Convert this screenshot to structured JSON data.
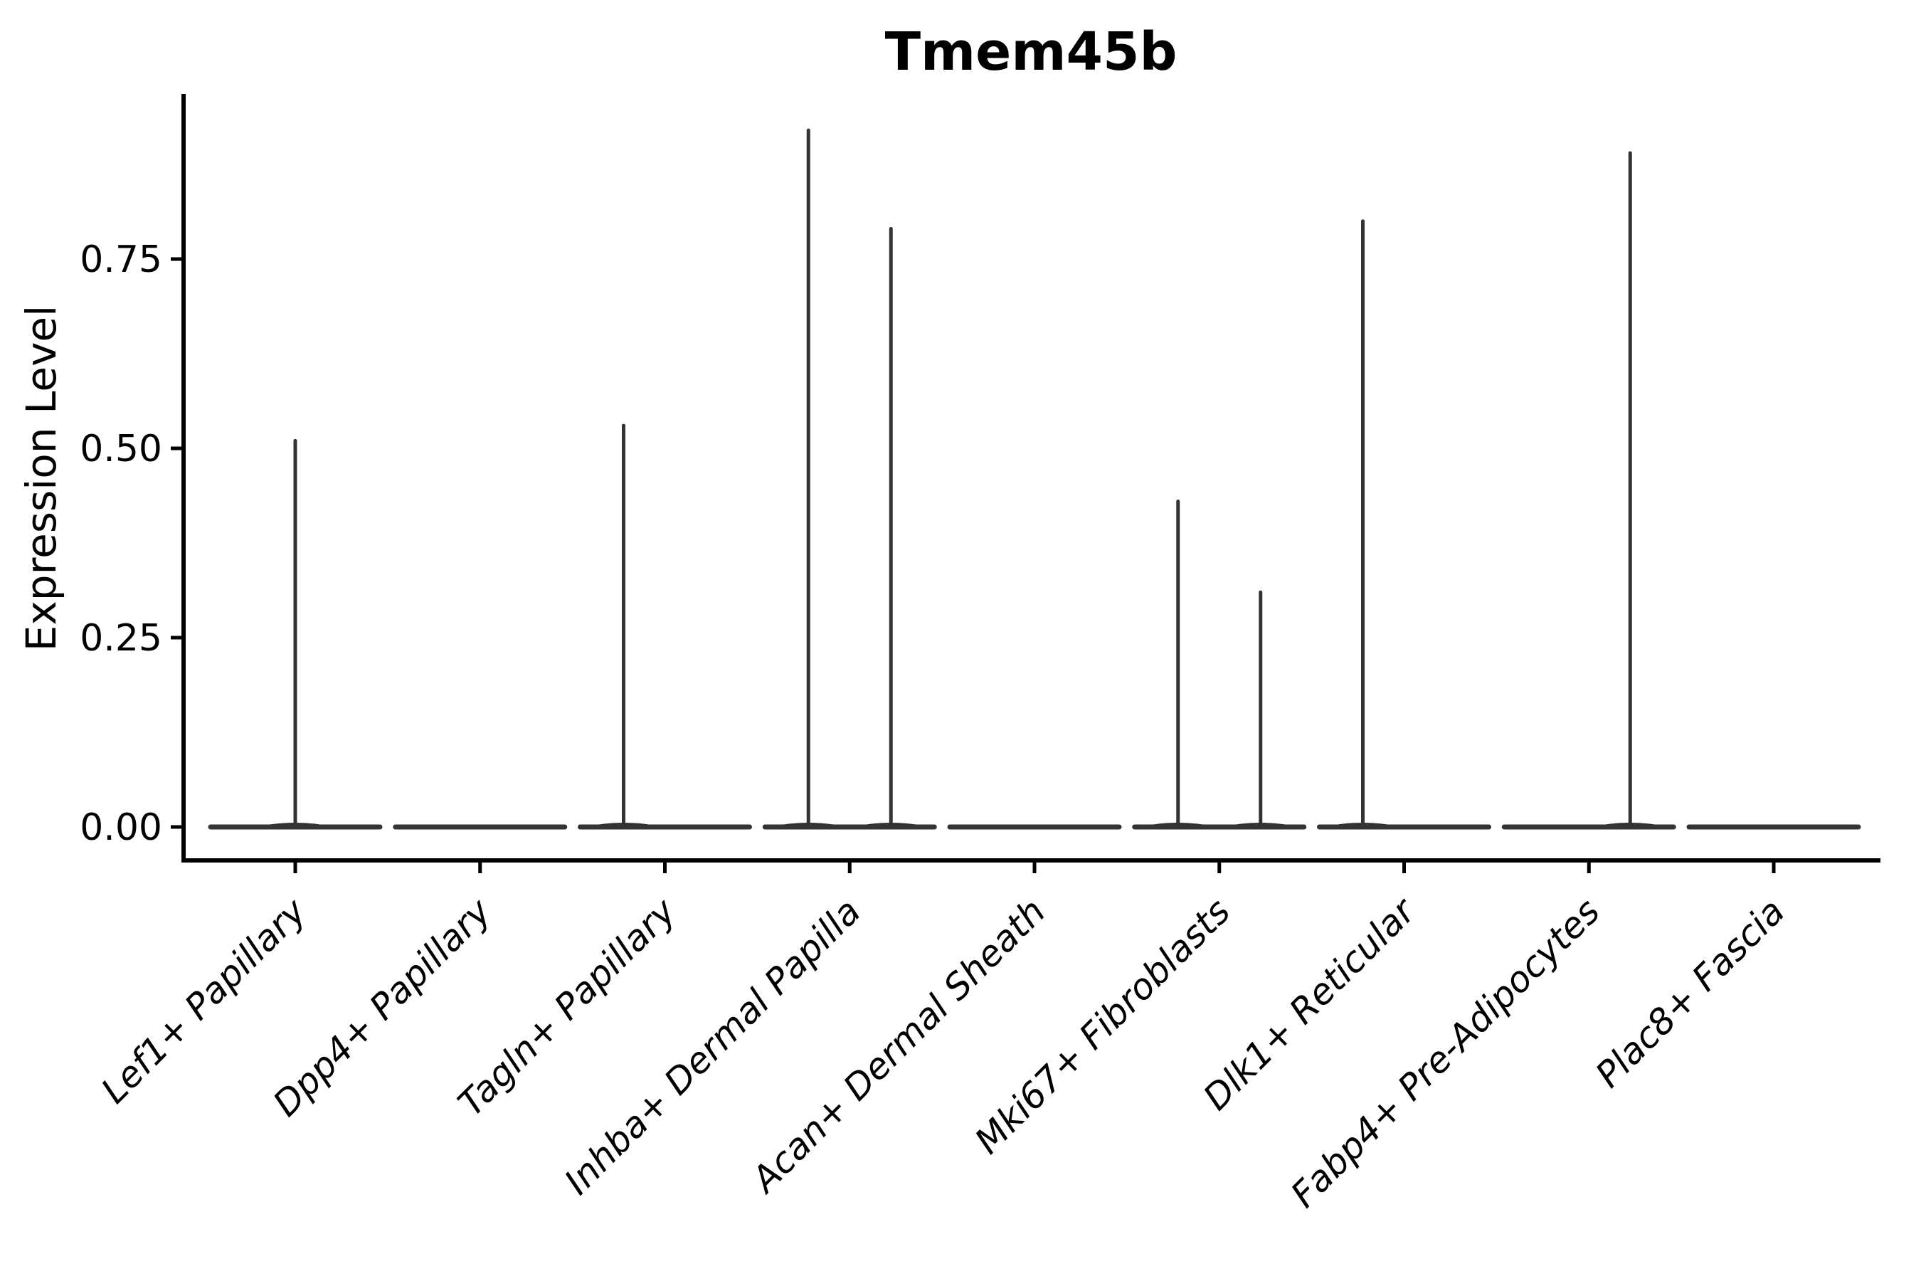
{
  "chart_data": {
    "type": "violin",
    "title": "Tmem45b",
    "xlabel": "",
    "ylabel": "Expression Level",
    "yticks": [
      0.0,
      0.25,
      0.5,
      0.75
    ],
    "ytick_labels": [
      "0.00",
      "0.25",
      "0.50",
      "0.75"
    ],
    "ylim": [
      -0.045,
      0.965
    ],
    "categories": [
      "Lef1+ Papillary",
      "Dpp4+ Papillary",
      "Tagln+ Papillary",
      "Inhba+ Dermal Papilla",
      "Acan+ Dermal Sheath",
      "Mki67+ Fibroblasts",
      "Dlk1+ Reticular",
      "Fabp4+ Pre-Adipocytes",
      "Plac8+ Fascia"
    ],
    "violins": [
      {
        "category": "Lef1+ Papillary",
        "body": "flat-at-zero",
        "spikes": [
          {
            "position": "center",
            "max": 0.51
          }
        ]
      },
      {
        "category": "Dpp4+ Papillary",
        "body": "flat-at-zero",
        "spikes": []
      },
      {
        "category": "Tagln+ Papillary",
        "body": "flat-at-zero",
        "spikes": [
          {
            "position": "left",
            "max": 0.53
          }
        ]
      },
      {
        "category": "Inhba+ Dermal Papilla",
        "body": "flat-at-zero",
        "spikes": [
          {
            "position": "left",
            "max": 0.92
          },
          {
            "position": "right",
            "max": 0.79
          }
        ]
      },
      {
        "category": "Acan+ Dermal Sheath",
        "body": "flat-at-zero",
        "spikes": []
      },
      {
        "category": "Mki67+ Fibroblasts",
        "body": "flat-at-zero",
        "spikes": [
          {
            "position": "left",
            "max": 0.43
          },
          {
            "position": "right",
            "max": 0.31
          }
        ]
      },
      {
        "category": "Dlk1+ Reticular",
        "body": "flat-at-zero",
        "spikes": [
          {
            "position": "left",
            "max": 0.8
          }
        ]
      },
      {
        "category": "Fabp4+ Pre-Adipocytes",
        "body": "flat-at-zero",
        "spikes": [
          {
            "position": "right",
            "max": 0.89
          }
        ]
      },
      {
        "category": "Plac8+ Fascia",
        "body": "flat-at-zero",
        "spikes": []
      }
    ],
    "baseline_value": 0.0,
    "colors": {
      "violin": "#333333",
      "axis": "#000000",
      "text": "#000000",
      "background": "#ffffff"
    },
    "layout": {
      "grid": false,
      "legend": false,
      "spines": [
        "left",
        "bottom"
      ],
      "x_label_rotation_deg": 45,
      "x_label_style": "italic",
      "title_weight": "bold"
    }
  }
}
